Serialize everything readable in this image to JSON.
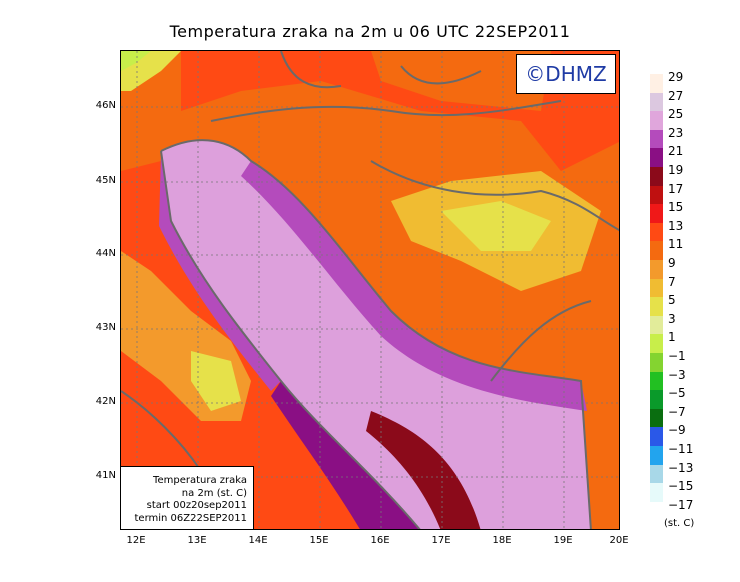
{
  "title": "Temperatura zraka na 2m u 06 UTC 22SEP2011",
  "logo": "©DHMZ",
  "info_box": {
    "line1": "Temperatura zraka",
    "line2": "na 2m (st. C)",
    "line3": "start 00z20sep2011",
    "line4": "termin 06Z22SEP2011"
  },
  "lat_labels": [
    "46N",
    "45N",
    "44N",
    "43N",
    "42N",
    "41N"
  ],
  "lon_labels": [
    "12E",
    "13E",
    "14E",
    "15E",
    "16E",
    "17E",
    "18E",
    "19E",
    "20E"
  ],
  "legend": {
    "unit": "(st. C)",
    "levels": [
      "29",
      "27",
      "25",
      "23",
      "21",
      "19",
      "17",
      "15",
      "13",
      "11",
      "9",
      "7",
      "5",
      "3",
      "1",
      "−1",
      "−3",
      "−5",
      "−7",
      "−9",
      "−11",
      "−13",
      "−15",
      "−17"
    ],
    "colors": [
      "#fff0e4",
      "#dcc8e0",
      "#e0a6dc",
      "#b44bbc",
      "#8a0f84",
      "#8b0a1a",
      "#bf1010",
      "#f01818",
      "#ff4a14",
      "#f46a10",
      "#f39a2c",
      "#f0bc32",
      "#e6e14a",
      "#e2ec9a",
      "#c8ee4a",
      "#84d430",
      "#22c022",
      "#0a9a2a",
      "#0a6e10",
      "#2a58e8",
      "#22a4ee",
      "#a8d8e8",
      "#e6fafa"
    ]
  },
  "colors": {
    "sea": "#dda0dc",
    "coast_band": "#b44bbc",
    "border": "#6a6a6a"
  }
}
